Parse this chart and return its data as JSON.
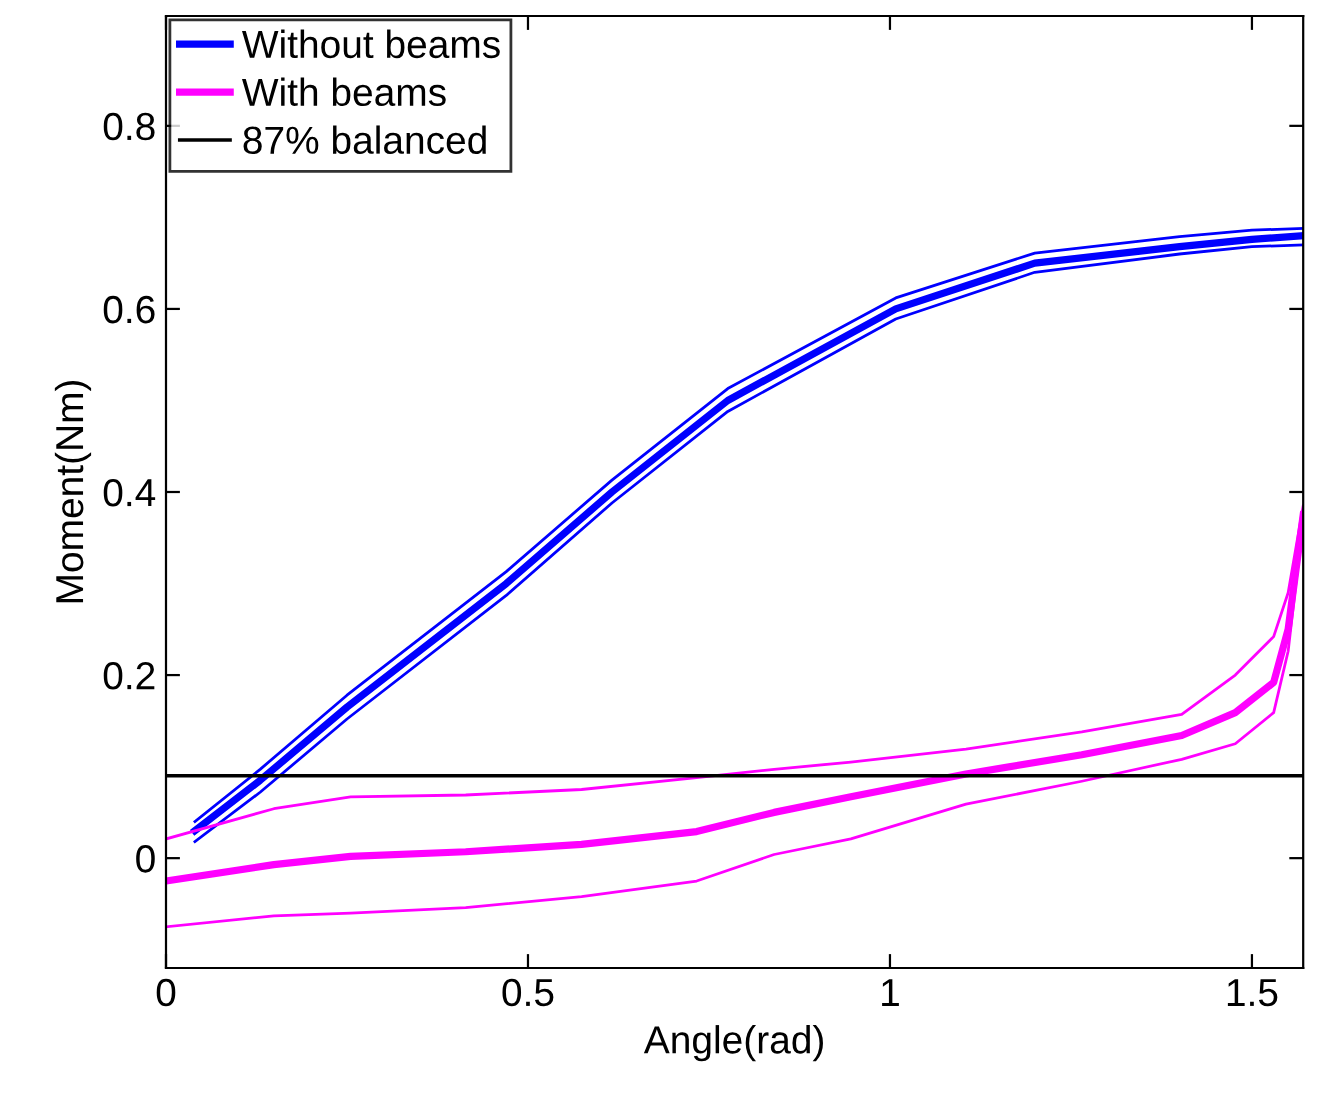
{
  "chart_data": {
    "type": "line",
    "xlabel": "Angle(rad)",
    "ylabel": "Moment(Nm)",
    "xlim": [
      0,
      1.5708
    ],
    "ylim": [
      -0.12,
      0.92
    ],
    "xticks": [
      0,
      0.5,
      1,
      1.5
    ],
    "yticks": [
      0,
      0.2,
      0.4,
      0.6,
      0.8
    ],
    "grid": false,
    "legend": "top left",
    "marker": "none",
    "line_style": "solid",
    "series": [
      {
        "name": "Without beams",
        "color": "#0000ff",
        "x": [
          0.04,
          0.13,
          0.25,
          0.47,
          0.616,
          0.776,
          1.008,
          1.2,
          1.4,
          1.5,
          1.5708
        ],
        "values": [
          0.03,
          0.085,
          0.165,
          0.3,
          0.4,
          0.5,
          0.6,
          0.65,
          0.668,
          0.676,
          0.68
        ]
      },
      {
        "color": "#0000ff",
        "x": [
          0.04,
          0.13,
          0.25,
          0.47,
          0.616,
          0.776,
          1.008,
          1.2,
          1.4,
          1.5,
          1.5708
        ],
        "values": [
          0.018,
          0.072,
          0.152,
          0.287,
          0.388,
          0.488,
          0.589,
          0.64,
          0.66,
          0.668,
          0.67
        ]
      },
      {
        "color": "#0000ff",
        "x": [
          0.04,
          0.13,
          0.25,
          0.47,
          0.616,
          0.776,
          1.008,
          1.2,
          1.4,
          1.5,
          1.5708
        ],
        "values": [
          0.04,
          0.097,
          0.178,
          0.313,
          0.413,
          0.513,
          0.612,
          0.661,
          0.679,
          0.686,
          0.688
        ]
      },
      {
        "name": "With beams",
        "color": "#ff00ff",
        "x": [
          0,
          0.149,
          0.255,
          0.414,
          0.574,
          0.733,
          0.84,
          0.946,
          1.105,
          1.265,
          1.403,
          1.477,
          1.53,
          1.55,
          1.5708
        ],
        "values": [
          -0.025,
          -0.007,
          0.002,
          0.007,
          0.015,
          0.029,
          0.05,
          0.067,
          0.092,
          0.113,
          0.134,
          0.159,
          0.192,
          0.25,
          0.375
        ]
      },
      {
        "color": "#ff00ff",
        "x": [
          0,
          0.149,
          0.255,
          0.414,
          0.574,
          0.733,
          0.84,
          0.946,
          1.105,
          1.265,
          1.403,
          1.477,
          1.53,
          1.55,
          1.5708
        ],
        "values": [
          -0.075,
          -0.063,
          -0.06,
          -0.054,
          -0.042,
          -0.025,
          0.004,
          0.021,
          0.059,
          0.084,
          0.108,
          0.125,
          0.159,
          0.226,
          0.37
        ]
      },
      {
        "color": "#ff00ff",
        "x": [
          0,
          0.149,
          0.255,
          0.414,
          0.574,
          0.733,
          0.84,
          0.946,
          1.105,
          1.265,
          1.403,
          1.477,
          1.53,
          1.55,
          1.5708
        ],
        "values": [
          0.021,
          0.054,
          0.067,
          0.069,
          0.075,
          0.088,
          0.097,
          0.105,
          0.119,
          0.138,
          0.157,
          0.2,
          0.242,
          0.29,
          0.385
        ]
      }
    ],
    "ref_lines": [
      {
        "axis": "y",
        "value": 0.09,
        "label": "87% balanced",
        "color": "#000000",
        "line_style": "solid"
      }
    ]
  }
}
